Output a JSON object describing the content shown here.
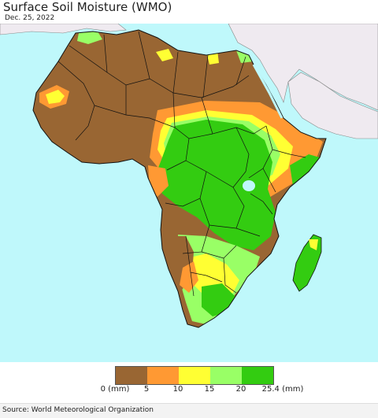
{
  "header": {
    "title": "Surface Soil Moisture (WMO)",
    "date": "Dec. 25, 2022"
  },
  "legend": {
    "colors": [
      "#996633",
      "#ff9933",
      "#ffff33",
      "#99ff66",
      "#33cc11"
    ],
    "ticks": [
      "0 (mm)",
      "5",
      "10",
      "15",
      "20",
      "25.4 (mm)"
    ]
  },
  "map": {
    "ocean_color": "#bff8fb",
    "foreign_land_color": "#efeaf0",
    "border_color": "#111111"
  },
  "footer": {
    "source": "Source: World Meteorological Organization"
  }
}
